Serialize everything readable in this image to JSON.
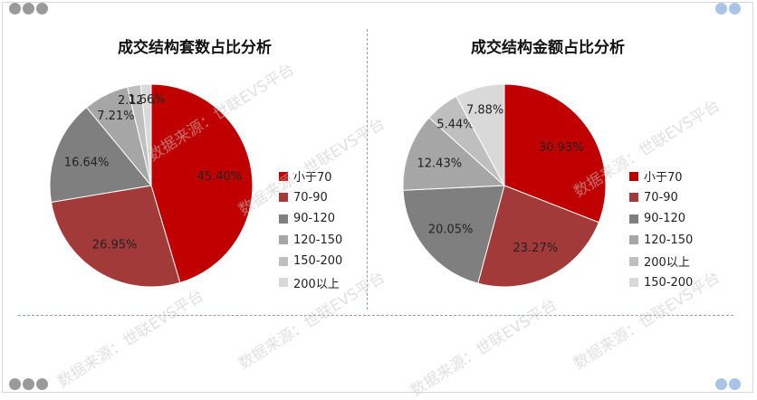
{
  "colors": {
    "dots_left": "#9a9a9a",
    "dots_right": "#a9c4e6",
    "palette": [
      "#c00000",
      "#a33a3a",
      "#7f7f7f",
      "#a6a6a6",
      "#bfbfbf",
      "#d9d9d9"
    ]
  },
  "watermark": "数据来源：世联EVS平台",
  "chart_data": [
    {
      "type": "pie",
      "title": "成交结构套数占比分析",
      "slices": [
        {
          "label": "小于70",
          "value": 45.4,
          "display": "45.40%",
          "color": "#c00000"
        },
        {
          "label": "70-90",
          "value": 26.95,
          "display": "26.95%",
          "color": "#a33a3a"
        },
        {
          "label": "90-120",
          "value": 16.64,
          "display": "16.64%",
          "color": "#7f7f7f"
        },
        {
          "label": "120-150",
          "value": 7.21,
          "display": "7.21%",
          "color": "#a6a6a6"
        },
        {
          "label": "150-200",
          "value": 2.12,
          "display": "2.12%",
          "color": "#bfbfbf"
        },
        {
          "label": "200以上",
          "value": 1.66,
          "display": "1.66%",
          "color": "#d9d9d9"
        }
      ]
    },
    {
      "type": "pie",
      "title": "成交结构金额占比分析",
      "slices": [
        {
          "label": "小于70",
          "value": 30.93,
          "display": "30.93%",
          "color": "#c00000"
        },
        {
          "label": "70-90",
          "value": 23.27,
          "display": "23.27%",
          "color": "#a33a3a"
        },
        {
          "label": "90-120",
          "value": 20.05,
          "display": "20.05%",
          "color": "#7f7f7f"
        },
        {
          "label": "120-150",
          "value": 12.43,
          "display": "12.43%",
          "color": "#a6a6a6"
        },
        {
          "label": "200以上",
          "value": 5.44,
          "display": "5.44%",
          "color": "#bfbfbf"
        },
        {
          "label": "150-200",
          "value": 7.88,
          "display": "7.88%",
          "color": "#d9d9d9"
        }
      ]
    }
  ]
}
